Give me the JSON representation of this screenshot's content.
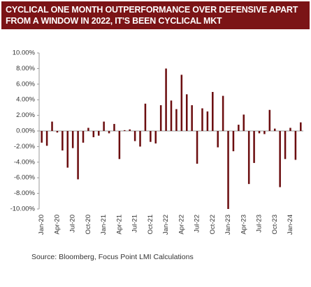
{
  "chart_data": {
    "type": "bar",
    "title": "CYCLICAL ONE MONTH OUTPERFORMANCE OVER DEFENSIVE APART FROM A WINDOW IN 2022, IT'S BEEN CYCLICAL MKT",
    "source": "Source:  Bloomberg, Focus Point LMI Calculations",
    "categories": [
      "Jan-20",
      null,
      null,
      "Apr-20",
      null,
      null,
      "Jul-20",
      null,
      null,
      "Oct-20",
      null,
      null,
      "Jan-21",
      null,
      null,
      "Apr-21",
      null,
      null,
      "Jul-21",
      null,
      null,
      "Oct-21",
      null,
      null,
      "Jan-22",
      null,
      null,
      "Apr-22",
      null,
      null,
      "Jul-22",
      null,
      null,
      "Oct-22",
      null,
      null,
      "Jan-23",
      null,
      null,
      "Apr-23",
      null,
      null,
      "Jul-23",
      null,
      null,
      "Oct-23",
      null,
      null,
      "Jan-24",
      null,
      null
    ],
    "values": [
      -1.5,
      -1.9,
      1.2,
      -0.2,
      -2.5,
      -4.7,
      -2.2,
      -6.2,
      -1.5,
      0.4,
      -0.8,
      -0.6,
      1.2,
      -0.3,
      0.9,
      -3.6,
      0.1,
      0.2,
      -1.3,
      -2.0,
      3.5,
      -1.4,
      -1.6,
      3.3,
      8.0,
      3.9,
      2.8,
      7.2,
      4.7,
      3.3,
      -4.2,
      2.9,
      2.5,
      5.0,
      -2.1,
      4.5,
      -10.0,
      -2.6,
      0.8,
      2.1,
      -6.8,
      -4.1,
      -0.3,
      -0.4,
      2.7,
      0.3,
      -7.2,
      -3.6,
      0.4,
      -3.7,
      1.1
    ],
    "color": "#6b0d0f",
    "ylim": [
      -10,
      10
    ],
    "yticks": [
      {
        "value": -10,
        "label": "-10.00%"
      },
      {
        "value": -8,
        "label": "-8.00%"
      },
      {
        "value": -6,
        "label": "-6.00%"
      },
      {
        "value": -4,
        "label": "-4.00%"
      },
      {
        "value": -2,
        "label": "-2.00%"
      },
      {
        "value": 0,
        "label": "0.00%"
      },
      {
        "value": 2,
        "label": "2.00%"
      },
      {
        "value": 4,
        "label": "4.00%"
      },
      {
        "value": 6,
        "label": "6.00%"
      },
      {
        "value": 8,
        "label": "8.00%"
      },
      {
        "value": 10,
        "label": "10.00%"
      }
    ],
    "grid": false
  }
}
